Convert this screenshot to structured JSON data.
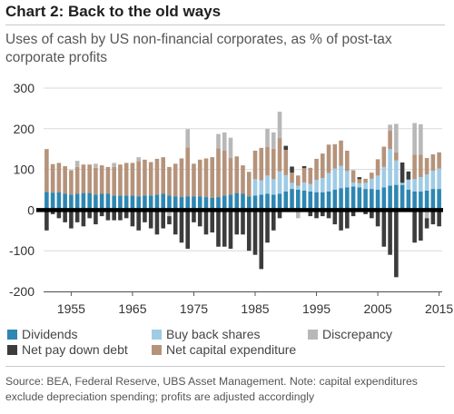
{
  "header": {
    "title": "Chart 2: Back to the old ways",
    "subtitle": "Uses of cash by US non-financial corporates, as % of post-tax corporate profits"
  },
  "footer": {
    "source": "Source: BEA, Federal Reserve, UBS Asset Management. Note: capital expenditures exclude depreciation spending; profits are adjusted accordingly"
  },
  "chart_data": {
    "type": "bar",
    "stacked": true,
    "title": "Chart 2: Back to the old ways",
    "ylim": [
      -200,
      300
    ],
    "yticks": [
      -200,
      -100,
      0,
      100,
      200,
      300
    ],
    "xticks": [
      1955,
      1965,
      1975,
      1985,
      1995,
      2005,
      2015
    ],
    "grid": true,
    "legend_position": "bottom",
    "categories": [
      1951,
      1952,
      1953,
      1954,
      1955,
      1956,
      1957,
      1958,
      1959,
      1960,
      1961,
      1962,
      1963,
      1964,
      1965,
      1966,
      1967,
      1968,
      1969,
      1970,
      1971,
      1972,
      1973,
      1974,
      1975,
      1976,
      1977,
      1978,
      1979,
      1980,
      1981,
      1982,
      1983,
      1984,
      1985,
      1986,
      1987,
      1988,
      1989,
      1990,
      1991,
      1992,
      1993,
      1994,
      1995,
      1996,
      1997,
      1998,
      1999,
      2000,
      2001,
      2002,
      2003,
      2004,
      2005,
      2006,
      2007,
      2008,
      2009,
      2010,
      2011,
      2012,
      2013,
      2014,
      2015
    ],
    "series": [
      {
        "name": "Dividends",
        "color": "#2e86b1",
        "values": [
          45,
          43,
          44,
          40,
          38,
          40,
          42,
          42,
          38,
          40,
          40,
          36,
          36,
          36,
          36,
          34,
          36,
          36,
          38,
          40,
          36,
          34,
          32,
          34,
          34,
          34,
          32,
          30,
          32,
          36,
          38,
          42,
          40,
          34,
          36,
          38,
          40,
          38,
          40,
          46,
          52,
          50,
          48,
          46,
          44,
          44,
          46,
          50,
          54,
          56,
          58,
          56,
          52,
          52,
          50,
          56,
          60,
          62,
          62,
          50,
          46,
          46,
          48,
          52,
          52
        ]
      },
      {
        "name": "Buy back shares",
        "color": "#9fcbe5",
        "values": [
          0,
          0,
          0,
          0,
          0,
          0,
          0,
          0,
          0,
          0,
          0,
          0,
          0,
          0,
          0,
          0,
          0,
          0,
          0,
          0,
          0,
          0,
          0,
          0,
          0,
          0,
          0,
          0,
          0,
          0,
          0,
          0,
          0,
          0,
          40,
          35,
          45,
          38,
          55,
          40,
          15,
          10,
          20,
          18,
          30,
          35,
          45,
          52,
          55,
          40,
          10,
          10,
          15,
          25,
          35,
          50,
          90,
          60,
          5,
          25,
          30,
          35,
          40,
          45,
          50
        ]
      },
      {
        "name": "Net capital expenditure",
        "color": "#b5937b",
        "values": [
          105,
          70,
          72,
          68,
          60,
          66,
          70,
          70,
          66,
          70,
          66,
          70,
          76,
          80,
          80,
          86,
          88,
          82,
          88,
          90,
          70,
          80,
          95,
          120,
          80,
          90,
          95,
          100,
          120,
          110,
          90,
          90,
          70,
          60,
          70,
          80,
          70,
          75,
          82,
          62,
          25,
          25,
          35,
          40,
          52,
          60,
          70,
          60,
          62,
          50,
          30,
          10,
          10,
          15,
          40,
          50,
          45,
          20,
          0,
          0,
          60,
          55,
          40,
          40,
          40
        ]
      },
      {
        "name": "Discrepancy",
        "color": "#b8b8b8",
        "values": [
          0,
          0,
          0,
          0,
          0,
          15,
          0,
          0,
          10,
          0,
          0,
          10,
          0,
          0,
          0,
          10,
          0,
          0,
          0,
          0,
          -15,
          0,
          0,
          45,
          0,
          0,
          0,
          0,
          35,
          45,
          50,
          0,
          0,
          0,
          0,
          0,
          45,
          40,
          65,
          0,
          0,
          -20,
          0,
          0,
          0,
          0,
          0,
          0,
          0,
          0,
          0,
          0,
          0,
          0,
          0,
          0,
          15,
          70,
          0,
          0,
          78,
          75,
          -20,
          0,
          0
        ]
      },
      {
        "name": "Net pay down debt",
        "color": "#3c3c3c",
        "values": [
          -50,
          -10,
          -20,
          -30,
          -45,
          -30,
          -40,
          -20,
          -35,
          -15,
          -25,
          -25,
          -25,
          -20,
          -40,
          -50,
          -30,
          -45,
          -60,
          -45,
          -20,
          -60,
          -80,
          -95,
          -30,
          -40,
          -60,
          -55,
          -90,
          -90,
          -95,
          -60,
          -60,
          -100,
          -110,
          -145,
          -80,
          -50,
          -20,
          10,
          15,
          0,
          5,
          -15,
          -20,
          -15,
          -20,
          -35,
          -50,
          -45,
          -15,
          5,
          -10,
          -20,
          -40,
          -90,
          -110,
          -165,
          50,
          20,
          -80,
          -75,
          -25,
          -35,
          -40
        ]
      }
    ]
  }
}
